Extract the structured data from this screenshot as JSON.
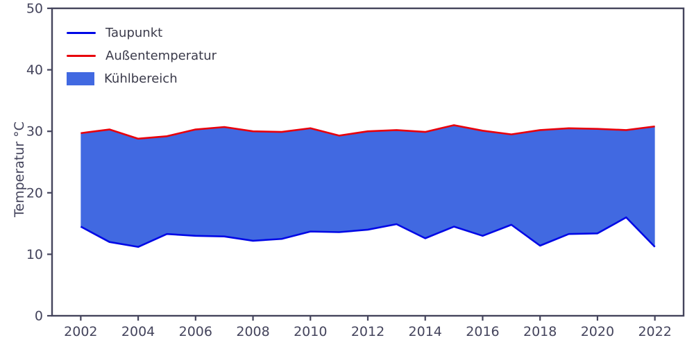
{
  "chart_data": {
    "type": "area",
    "x": [
      2002,
      2003,
      2004,
      2005,
      2006,
      2007,
      2008,
      2009,
      2010,
      2011,
      2012,
      2013,
      2014,
      2015,
      2016,
      2017,
      2018,
      2019,
      2020,
      2021,
      2022
    ],
    "series": [
      {
        "name": "Taupunkt",
        "color": "#0008e6",
        "values": [
          14.5,
          12.0,
          11.2,
          13.3,
          13.0,
          12.9,
          12.2,
          12.5,
          13.7,
          13.6,
          14.0,
          14.9,
          12.6,
          14.5,
          13.0,
          14.8,
          11.4,
          13.3,
          13.4,
          16.0,
          11.2
        ]
      },
      {
        "name": "Außentemperatur",
        "color": "#e8000b",
        "values": [
          29.7,
          30.3,
          28.8,
          29.2,
          30.3,
          30.7,
          30.0,
          29.9,
          30.5,
          29.3,
          30.0,
          30.2,
          29.9,
          31.0,
          30.1,
          29.5,
          30.2,
          30.5,
          30.4,
          30.2,
          30.8
        ]
      }
    ],
    "fill_between": {
      "name": "Kühlbereich",
      "color": "#4169e1",
      "lower": "Taupunkt",
      "upper": "Außentemperatur"
    },
    "title": "",
    "xlabel": "",
    "ylabel": "Temperatur °C",
    "xlim": [
      2001,
      2023
    ],
    "ylim": [
      0,
      50
    ],
    "xticks": [
      2002,
      2004,
      2006,
      2008,
      2010,
      2012,
      2014,
      2016,
      2018,
      2020,
      2022
    ],
    "yticks": [
      0,
      10,
      20,
      30,
      40,
      50
    ],
    "grid": false,
    "legend_position": "upper left",
    "axis_color": "#44445c"
  },
  "legend": {
    "items": [
      {
        "label": "Taupunkt",
        "color": "#0008e6",
        "kind": "line"
      },
      {
        "label": "Außentemperatur",
        "color": "#e8000b",
        "kind": "line"
      },
      {
        "label": "Kühlbereich",
        "color": "#4169e1",
        "kind": "patch"
      }
    ]
  }
}
